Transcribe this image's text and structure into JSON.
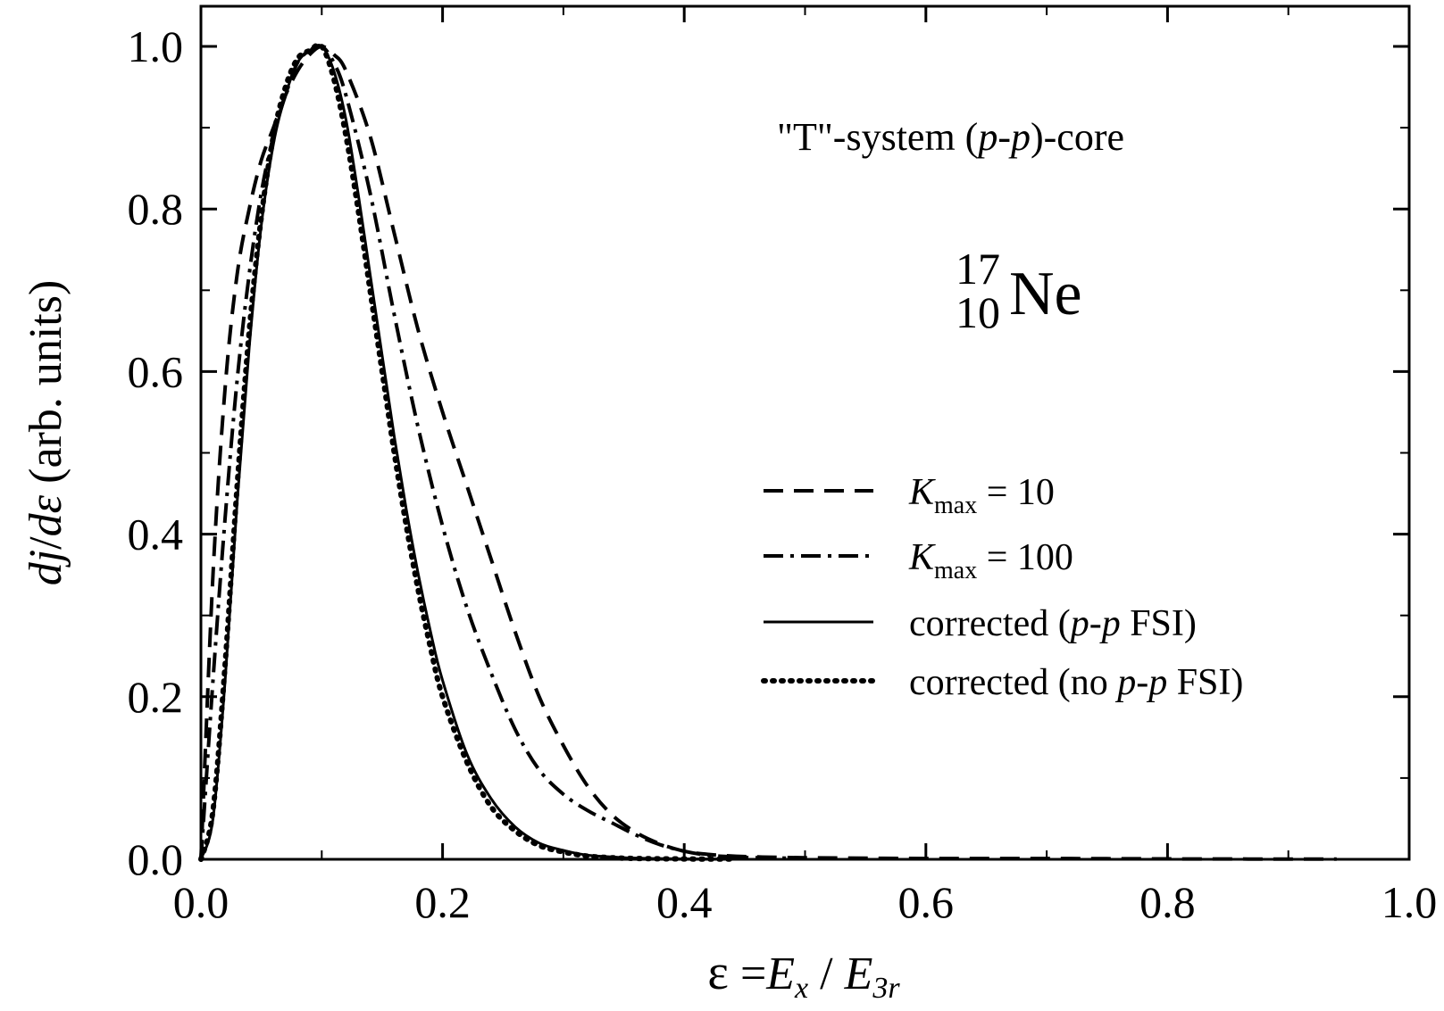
{
  "chart_data": {
    "type": "line",
    "xlim": [
      0,
      1
    ],
    "ylim": [
      0,
      1
    ],
    "x_ticks": [
      "0.0",
      "0.2",
      "0.4",
      "0.6",
      "0.8",
      "1.0"
    ],
    "y_ticks": [
      "0.0",
      "0.2",
      "0.4",
      "0.6",
      "0.8",
      "1.0"
    ],
    "xlabel": {
      "eps": "ε",
      "eq": " =",
      "E1": "E",
      "sub1": "x",
      "slash": " / ",
      "E2": "E",
      "sub2": "3r"
    },
    "ylabel": {
      "num": "dj",
      "slash": "/",
      "den": "dε",
      "units": " (arb. units)"
    },
    "annotation": {
      "q1": "\"T\"-system   (",
      "p1": "p",
      "dash": "-",
      "p2": "p",
      "q2": ")-core"
    },
    "nucleus": {
      "mass": "17",
      "charge": "10",
      "symbol": "Ne"
    },
    "legend_position": "center-right",
    "legend": {
      "kmax10": {
        "k": "K",
        "sub": "max",
        "eq": " = 10"
      },
      "kmax100": {
        "k": "K",
        "sub": "max",
        "eq": " = 100"
      },
      "corr_fsi": {
        "a": "corrected  (",
        "p": "p-p",
        "b": " FSI)"
      },
      "corr_nofsi": {
        "a": "corrected  (no ",
        "p": "p-p",
        "b": " FSI)"
      }
    },
    "series": [
      {
        "style": "dashed",
        "x": [
          0,
          0.01,
          0.02,
          0.03,
          0.04,
          0.05,
          0.06,
          0.07,
          0.08,
          0.09,
          0.1,
          0.11,
          0.12,
          0.14,
          0.16,
          0.18,
          0.2,
          0.22,
          0.24,
          0.26,
          0.28,
          0.3,
          0.32,
          0.34,
          0.36,
          0.38,
          0.4,
          0.42,
          0.44,
          0.46,
          0.5,
          0.6,
          0.7,
          0.8,
          0.9,
          0.94
        ],
        "y": [
          0,
          0.35,
          0.58,
          0.72,
          0.8,
          0.86,
          0.9,
          0.94,
          0.97,
          0.99,
          1.0,
          0.99,
          0.97,
          0.89,
          0.77,
          0.65,
          0.55,
          0.46,
          0.37,
          0.28,
          0.2,
          0.14,
          0.09,
          0.055,
          0.033,
          0.019,
          0.01,
          0.006,
          0.004,
          0.003,
          0.002,
          0.001,
          0.001,
          0.0005,
          0.0003,
          0.0002
        ]
      },
      {
        "style": "dashdot",
        "x": [
          0,
          0.01,
          0.02,
          0.03,
          0.04,
          0.05,
          0.06,
          0.07,
          0.08,
          0.09,
          0.1,
          0.11,
          0.12,
          0.14,
          0.16,
          0.18,
          0.2,
          0.22,
          0.24,
          0.26,
          0.28,
          0.3,
          0.32,
          0.34,
          0.36,
          0.38,
          0.4,
          0.42,
          0.44,
          0.46,
          0.5
        ],
        "y": [
          0,
          0.22,
          0.42,
          0.59,
          0.72,
          0.82,
          0.89,
          0.94,
          0.98,
          0.995,
          1.0,
          0.98,
          0.94,
          0.82,
          0.67,
          0.53,
          0.41,
          0.31,
          0.23,
          0.16,
          0.11,
          0.08,
          0.06,
          0.045,
          0.03,
          0.018,
          0.01,
          0.005,
          0.003,
          0.002,
          0.001
        ]
      },
      {
        "style": "solid",
        "x": [
          0,
          0.01,
          0.02,
          0.03,
          0.04,
          0.05,
          0.06,
          0.07,
          0.08,
          0.09,
          0.1,
          0.11,
          0.12,
          0.13,
          0.14,
          0.15,
          0.16,
          0.17,
          0.18,
          0.19,
          0.2,
          0.22,
          0.24,
          0.26,
          0.28,
          0.3,
          0.32,
          0.34,
          0.36,
          0.4,
          0.44
        ],
        "y": [
          0,
          0.05,
          0.22,
          0.44,
          0.63,
          0.78,
          0.88,
          0.94,
          0.98,
          0.995,
          1.0,
          0.97,
          0.91,
          0.82,
          0.72,
          0.62,
          0.52,
          0.43,
          0.35,
          0.28,
          0.22,
          0.13,
          0.075,
          0.04,
          0.02,
          0.011,
          0.005,
          0.003,
          0.0015,
          0.0005,
          0.0002
        ]
      },
      {
        "style": "dotted",
        "x": [
          0,
          0.01,
          0.02,
          0.03,
          0.04,
          0.05,
          0.06,
          0.07,
          0.08,
          0.09,
          0.1,
          0.11,
          0.12,
          0.13,
          0.14,
          0.15,
          0.16,
          0.17,
          0.18,
          0.19,
          0.2,
          0.22,
          0.24,
          0.26,
          0.28,
          0.3,
          0.32,
          0.34,
          0.36,
          0.4,
          0.44
        ],
        "y": [
          0,
          0.06,
          0.24,
          0.46,
          0.65,
          0.79,
          0.89,
          0.95,
          0.985,
          0.995,
          1.0,
          0.96,
          0.89,
          0.8,
          0.7,
          0.6,
          0.5,
          0.41,
          0.33,
          0.26,
          0.2,
          0.12,
          0.065,
          0.035,
          0.017,
          0.009,
          0.004,
          0.002,
          0.001,
          0.0004,
          0.0002
        ]
      }
    ]
  }
}
